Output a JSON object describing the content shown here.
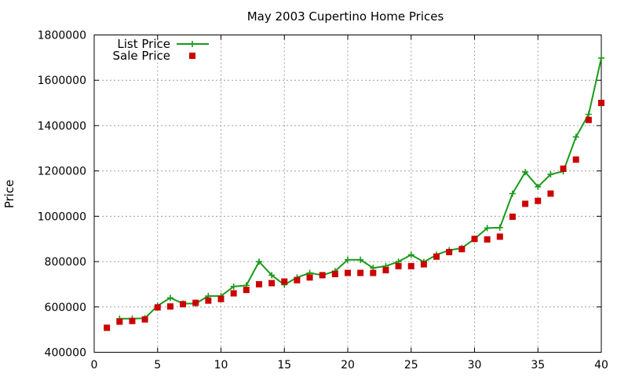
{
  "chart_data": {
    "type": "line",
    "title": "May 2003 Cupertino Home Prices",
    "xlabel": "",
    "ylabel": "Price",
    "xlim": [
      0,
      40
    ],
    "ylim": [
      400000,
      1800000
    ],
    "x_ticks": [
      "0",
      "5",
      "10",
      "15",
      "20",
      "25",
      "30",
      "35",
      "40"
    ],
    "y_ticks": [
      "400000",
      "600000",
      "800000",
      "1000000",
      "1200000",
      "1400000",
      "1600000",
      "1800000"
    ],
    "grid": true,
    "legend_position": "top-left",
    "x": [
      1,
      2,
      3,
      4,
      5,
      6,
      7,
      8,
      9,
      10,
      11,
      12,
      13,
      14,
      15,
      16,
      17,
      18,
      19,
      20,
      21,
      22,
      23,
      24,
      25,
      26,
      27,
      28,
      29,
      30,
      31,
      32,
      33,
      34,
      35,
      36,
      37,
      38,
      39,
      40
    ],
    "series": [
      {
        "name": "List Price",
        "style": "line-plus",
        "color": "#1a9a1a",
        "values": [
          null,
          548000,
          548000,
          550000,
          605000,
          640000,
          615000,
          615000,
          648000,
          648000,
          690000,
          695000,
          800000,
          740000,
          698000,
          730000,
          750000,
          740000,
          758000,
          808000,
          808000,
          772000,
          780000,
          800000,
          830000,
          798000,
          830000,
          850000,
          860000,
          900000,
          948000,
          950000,
          1100000,
          1195000,
          1130000,
          1185000,
          1198000,
          1350000,
          1450000,
          1698000
        ]
      },
      {
        "name": "Sale Price",
        "style": "square",
        "color": "#cc0000",
        "values": [
          508000,
          535000,
          538000,
          545000,
          598000,
          602000,
          612000,
          618000,
          628000,
          635000,
          660000,
          675000,
          700000,
          705000,
          712000,
          718000,
          730000,
          740000,
          745000,
          750000,
          750000,
          750000,
          762000,
          780000,
          780000,
          788000,
          822000,
          842000,
          855000,
          900000,
          898000,
          910000,
          998000,
          1055000,
          1068000,
          1100000,
          1210000,
          1250000,
          1425000,
          1500000
        ]
      }
    ]
  }
}
